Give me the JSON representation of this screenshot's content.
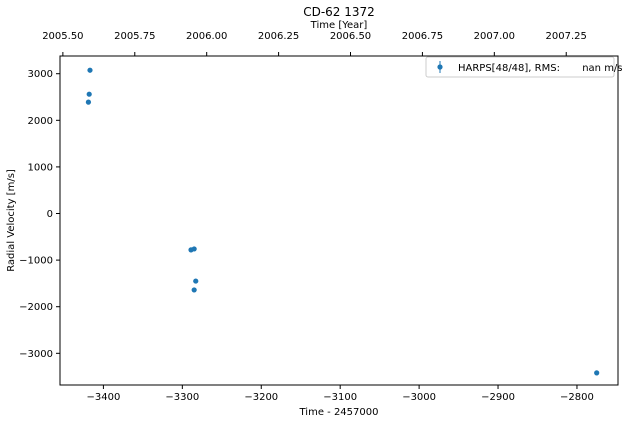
{
  "chart_data": {
    "type": "scatter",
    "title": "CD-62  1372",
    "xlabel": "Time - 2457000",
    "ylabel": "Radial Velocity [m/s]",
    "top_xlabel": "Time [Year]",
    "xlim": [
      -3455,
      -2748
    ],
    "ylim": [
      -3680,
      3380
    ],
    "top_xlim": [
      2005.49,
      2007.43
    ],
    "x_ticks": [
      -3400,
      -3300,
      -3200,
      -3100,
      -3000,
      -2900,
      -2800
    ],
    "x_tick_labels": [
      "−3400",
      "−3300",
      "−3200",
      "−3100",
      "−3000",
      "−2900",
      "−2800"
    ],
    "y_ticks": [
      -3000,
      -2000,
      -1000,
      0,
      1000,
      2000,
      3000
    ],
    "y_tick_labels": [
      "−3000",
      "−2000",
      "−1000",
      "0",
      "1000",
      "2000",
      "3000"
    ],
    "top_x_ticks": [
      2005.5,
      2005.75,
      2006.0,
      2006.25,
      2006.5,
      2006.75,
      2007.0,
      2007.25
    ],
    "top_x_tick_labels": [
      "2005.50",
      "2005.75",
      "2006.00",
      "2006.25",
      "2006.50",
      "2006.75",
      "2007.00",
      "2007.25"
    ],
    "grid": false,
    "legend_position": "top-right",
    "series": [
      {
        "name": "HARPS[48/48], RMS:       nan m/s",
        "color": "#1f77b4",
        "points": [
          {
            "x": -3417,
            "y": 3075
          },
          {
            "x": -3418,
            "y": 2560
          },
          {
            "x": -3419,
            "y": 2390
          },
          {
            "x": -3289,
            "y": -780
          },
          {
            "x": -3285,
            "y": -760
          },
          {
            "x": -3283,
            "y": -1450
          },
          {
            "x": -3285,
            "y": -1640
          },
          {
            "x": -2775,
            "y": -3420
          }
        ]
      }
    ]
  }
}
